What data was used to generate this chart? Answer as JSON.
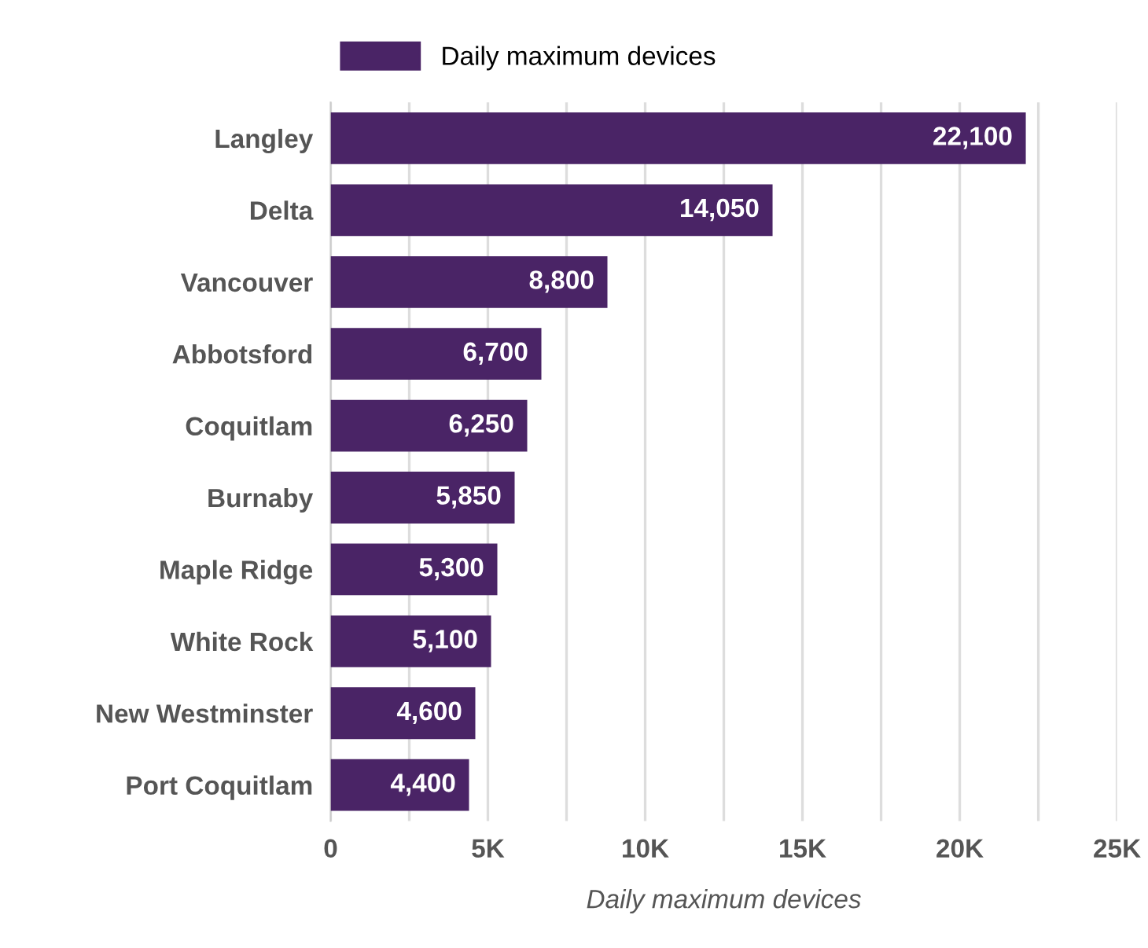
{
  "chart_data": {
    "type": "bar",
    "orientation": "horizontal",
    "xlabel": "Daily maximum devices",
    "categories": [
      "Langley",
      "Delta",
      "Vancouver",
      "Abbotsford",
      "Coquitlam",
      "Burnaby",
      "Maple Ridge",
      "White Rock",
      "New Westminster",
      "Port Coquitlam"
    ],
    "series": [
      {
        "name": "Daily maximum devices",
        "color": "#4a2466",
        "values": [
          22100,
          14050,
          8800,
          6700,
          6250,
          5850,
          5300,
          5100,
          4600,
          4400
        ],
        "value_labels": [
          "22,100",
          "14,050",
          "8,800",
          "6,700",
          "6,250",
          "5,850",
          "5,300",
          "5,100",
          "4,600",
          "4,400"
        ]
      }
    ],
    "xlim": [
      0,
      25000
    ],
    "xticks": [
      {
        "value": 0,
        "label": "0"
      },
      {
        "value": 2500,
        "label": null
      },
      {
        "value": 5000,
        "label": "5K"
      },
      {
        "value": 7500,
        "label": null
      },
      {
        "value": 10000,
        "label": "10K"
      },
      {
        "value": 12500,
        "label": null
      },
      {
        "value": 15000,
        "label": "15K"
      },
      {
        "value": 17500,
        "label": null
      },
      {
        "value": 20000,
        "label": "20K"
      },
      {
        "value": 22500,
        "label": null
      },
      {
        "value": 25000,
        "label": "25K"
      }
    ],
    "grid": "x",
    "legend": "top"
  }
}
